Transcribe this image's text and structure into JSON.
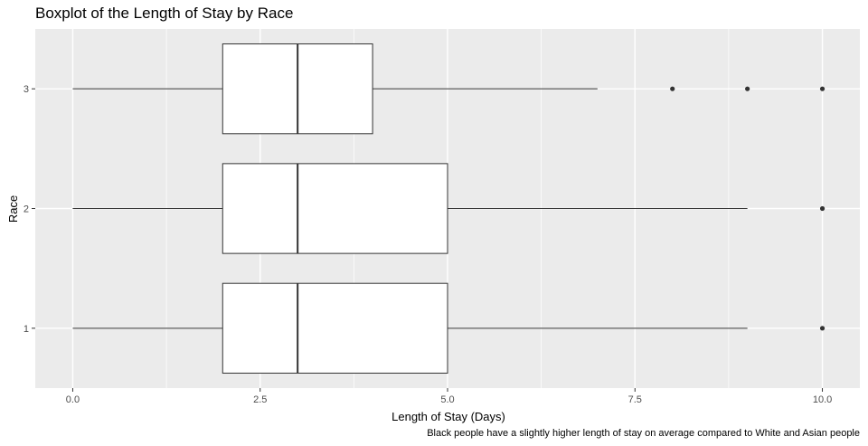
{
  "chart_data": {
    "type": "boxplot",
    "title": "Boxplot of the Length of Stay by Race",
    "xlabel": "Length of Stay (Days)",
    "ylabel": "Race",
    "caption": "Black people have a slightly higher length of stay on average compared to White and Asian people",
    "orientation": "horizontal",
    "xlim": [
      -0.5,
      10.5
    ],
    "xticks": [
      0,
      2.5,
      5,
      7.5,
      10
    ],
    "xtick_labels": [
      "0.0",
      "2.5",
      "5.0",
      "7.5",
      "10.0"
    ],
    "categories": [
      "1",
      "2",
      "3"
    ],
    "boxes": [
      {
        "category": "1",
        "whisker_low": 0,
        "q1": 2,
        "median": 3,
        "q3": 5,
        "whisker_high": 9,
        "outliers": [
          10
        ]
      },
      {
        "category": "2",
        "whisker_low": 0,
        "q1": 2,
        "median": 3,
        "q3": 5,
        "whisker_high": 9,
        "outliers": [
          10
        ]
      },
      {
        "category": "3",
        "whisker_low": 0,
        "q1": 2,
        "median": 3,
        "q3": 4,
        "whisker_high": 7,
        "outliers": [
          8,
          9,
          10
        ]
      }
    ],
    "grid": true,
    "legend": "none",
    "colors": {
      "panel": "#EBEBEB",
      "grid": "#FFFFFF",
      "box_fill": "#FFFFFF",
      "line": "#333333",
      "tick_text": "#4D4D4D"
    }
  }
}
